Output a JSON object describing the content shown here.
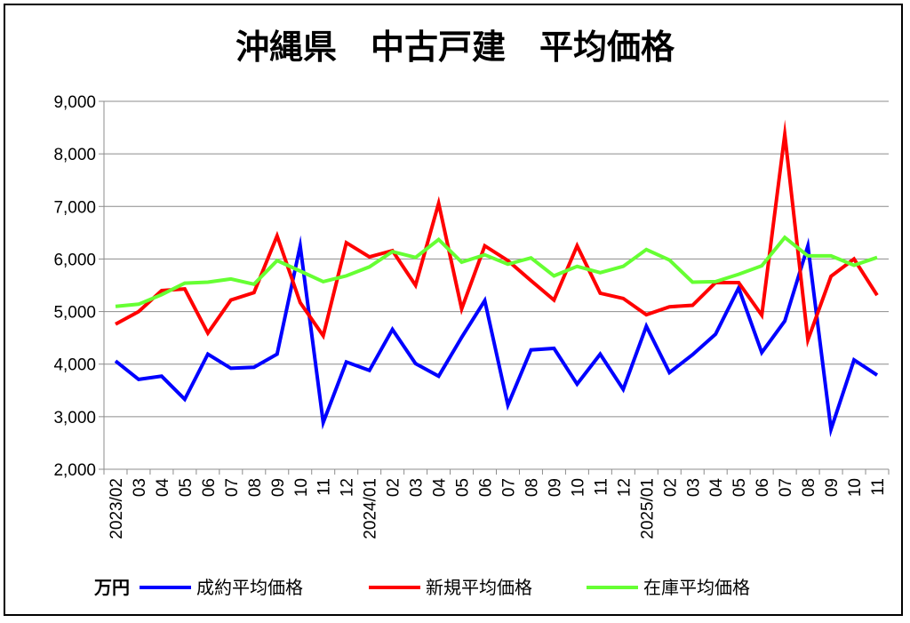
{
  "chart_data": {
    "type": "line",
    "title": "沖縄県　中古戸建　平均価格",
    "unit": "万円",
    "ylim": [
      2000,
      9000
    ],
    "yticks": [
      2000,
      3000,
      4000,
      5000,
      6000,
      7000,
      8000,
      9000
    ],
    "ytick_labels": [
      "2,000",
      "3,000",
      "4,000",
      "5,000",
      "6,000",
      "7,000",
      "8,000",
      "9,000"
    ],
    "grid": true,
    "legend_position": "bottom",
    "x": [
      "2023/02",
      "03",
      "04",
      "05",
      "06",
      "07",
      "08",
      "09",
      "10",
      "11",
      "12",
      "2024/01",
      "02",
      "03",
      "04",
      "05",
      "06",
      "07",
      "08",
      "09",
      "10",
      "11",
      "12",
      "2025/01",
      "02",
      "03",
      "04",
      "05",
      "06",
      "07",
      "08",
      "09",
      "10",
      "11"
    ],
    "series": [
      {
        "name": "成約平均価格",
        "color": "#0000ff",
        "values": [
          4060,
          3710,
          3770,
          3330,
          4190,
          3920,
          3940,
          4190,
          6250,
          2890,
          4040,
          3880,
          4660,
          4010,
          3770,
          4510,
          5210,
          3220,
          4270,
          4300,
          3620,
          4190,
          3520,
          4720,
          3840,
          4180,
          4570,
          5450,
          4220,
          4820,
          6250,
          2760,
          4080,
          3790
        ]
      },
      {
        "name": "新規平均価格",
        "color": "#ff0000",
        "values": [
          4760,
          5000,
          5400,
          5430,
          4590,
          5220,
          5360,
          6440,
          5170,
          4540,
          6310,
          6040,
          6160,
          5500,
          7060,
          5050,
          6250,
          5970,
          5590,
          5220,
          6250,
          5350,
          5250,
          4940,
          5090,
          5120,
          5550,
          5550,
          4930,
          8370,
          4460,
          5670,
          6000,
          5310
        ]
      },
      {
        "name": "在庫平均価格",
        "color": "#66ff33",
        "values": [
          5100,
          5140,
          5320,
          5540,
          5560,
          5620,
          5520,
          5970,
          5770,
          5570,
          5680,
          5850,
          6140,
          6030,
          6370,
          5940,
          6080,
          5900,
          6020,
          5680,
          5860,
          5740,
          5860,
          6180,
          5980,
          5560,
          5570,
          5710,
          5870,
          6410,
          6060,
          6060,
          5880,
          6030
        ]
      }
    ]
  }
}
